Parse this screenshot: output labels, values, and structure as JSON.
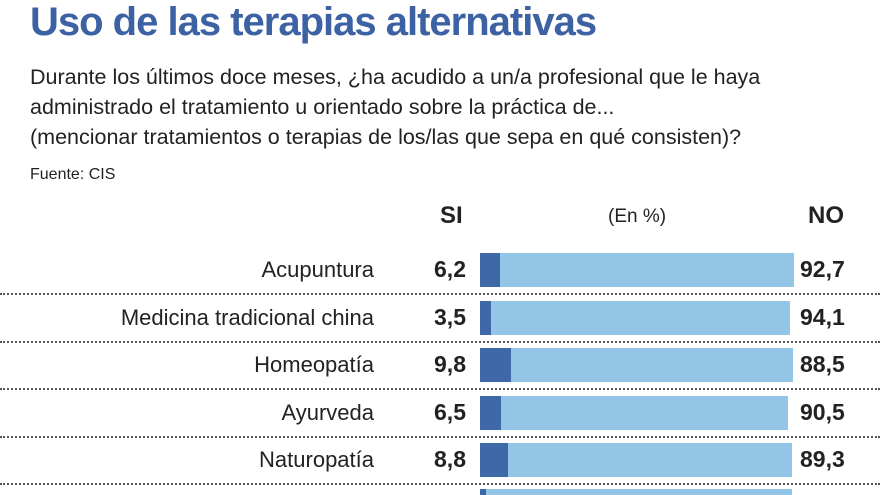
{
  "header": {
    "title": "Uso de las terapias alternativas",
    "subtitle_lines": [
      "Durante los últimos doce meses, ¿ha acudido a un/a profesional que le haya",
      "administrado el tratamiento u orientado sobre la práctica de...",
      "(mencionar tratamientos o terapias de los/las que sepa en qué consisten)?"
    ],
    "source": "Fuente: CIS"
  },
  "colors": {
    "title": "#3d62a4",
    "si": "#3f68a8",
    "no": "#93c6e6"
  },
  "chart_data": {
    "type": "bar",
    "stacked": true,
    "orientation": "horizontal",
    "title": "Uso de las terapias alternativas",
    "unit_label": "(En %)",
    "categories": [
      "Acupuntura",
      "Medicina tradicional china",
      "Homeopatía",
      "Ayurveda",
      "Naturopatía"
    ],
    "series": [
      {
        "name": "SI",
        "values": [
          6.2,
          3.5,
          9.8,
          6.5,
          8.8
        ],
        "labels": [
          "6,2",
          "3,5",
          "9,8",
          "6,5",
          "8,8"
        ]
      },
      {
        "name": "NO",
        "values": [
          92.7,
          94.1,
          88.5,
          90.5,
          89.3
        ],
        "labels": [
          "92,7",
          "94,1",
          "88,5",
          "90,5",
          "89,3"
        ]
      }
    ],
    "xlim": [
      0,
      100
    ]
  }
}
